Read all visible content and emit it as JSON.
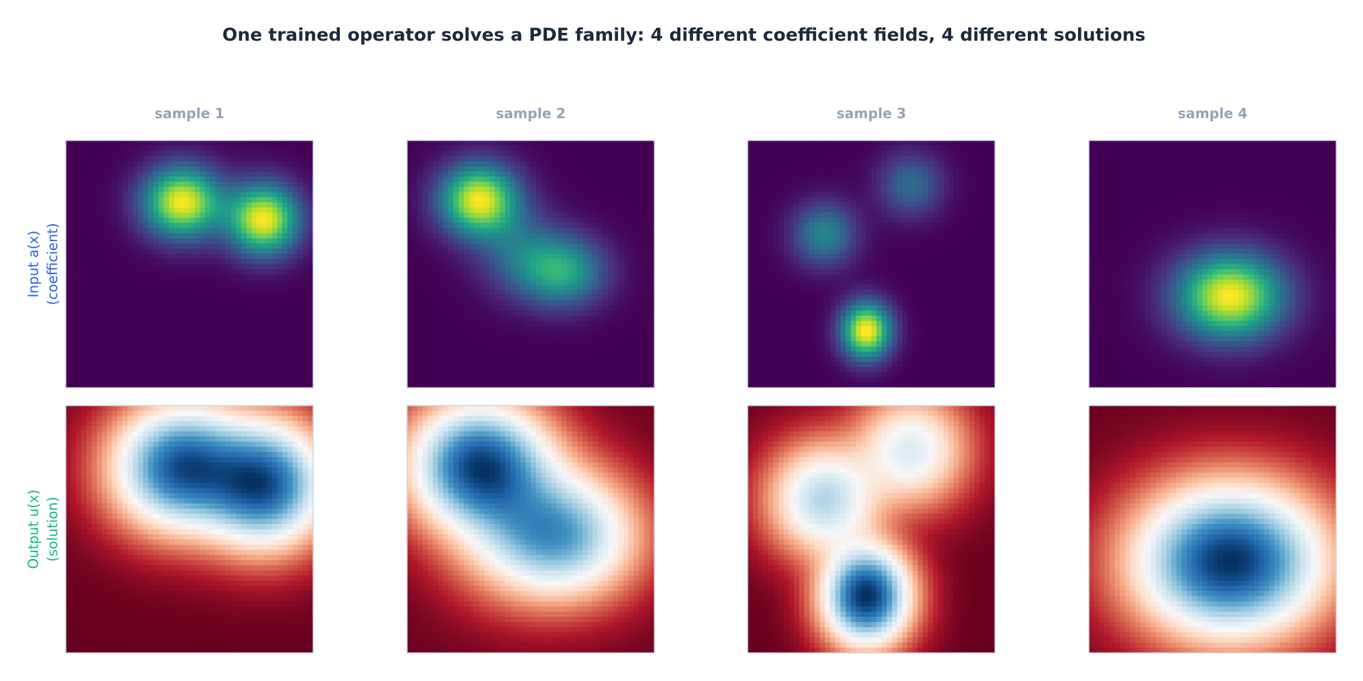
{
  "title": "One trained operator solves a PDE family: 4 different coefficient fields, 4 different solutions",
  "columns": [
    "sample 1",
    "sample 2",
    "sample 3",
    "sample 4"
  ],
  "rows": [
    {
      "label": "Input a(x)",
      "sublabel": "(coefficient)",
      "color": "#2563eb",
      "colormap": "viridis"
    },
    {
      "label": "Output u(x)",
      "sublabel": "(solution)",
      "color": "#10b981",
      "colormap": "RdBu"
    }
  ]
}
